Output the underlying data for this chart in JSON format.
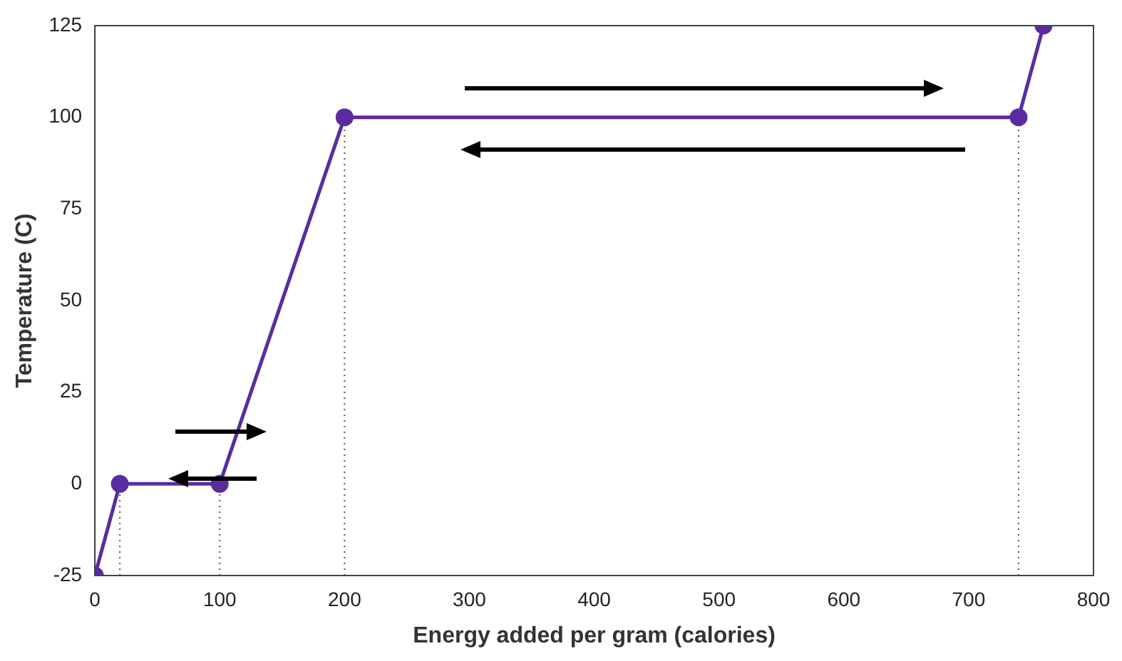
{
  "chart_data": {
    "type": "line",
    "xlabel": "Energy added per gram (calories)",
    "ylabel": "Temperature (C)",
    "x": [
      0,
      20,
      100,
      200,
      740,
      760
    ],
    "series": [
      {
        "color": "#5a2ca0",
        "values": [
          -25,
          0,
          0,
          100,
          100,
          125
        ]
      }
    ],
    "marker": "circle",
    "line_style": "solid",
    "grid": false,
    "legend": false,
    "xlim": [
      0,
      800
    ],
    "xticks": [
      0,
      100,
      200,
      300,
      400,
      500,
      600,
      700,
      800
    ],
    "ylim": [
      -25,
      125
    ],
    "yticks": [
      -25,
      0,
      25,
      50,
      75,
      100,
      125
    ],
    "ref_lines": [
      {
        "axis": "x",
        "value": 20,
        "line_style": "dotted",
        "color": "#555555"
      },
      {
        "axis": "x",
        "value": 100,
        "line_style": "dotted",
        "color": "#555555"
      },
      {
        "axis": "x",
        "value": 200,
        "line_style": "dotted",
        "color": "#555555"
      },
      {
        "axis": "x",
        "value": 740,
        "line_style": "dotted",
        "color": "#555555"
      }
    ]
  }
}
